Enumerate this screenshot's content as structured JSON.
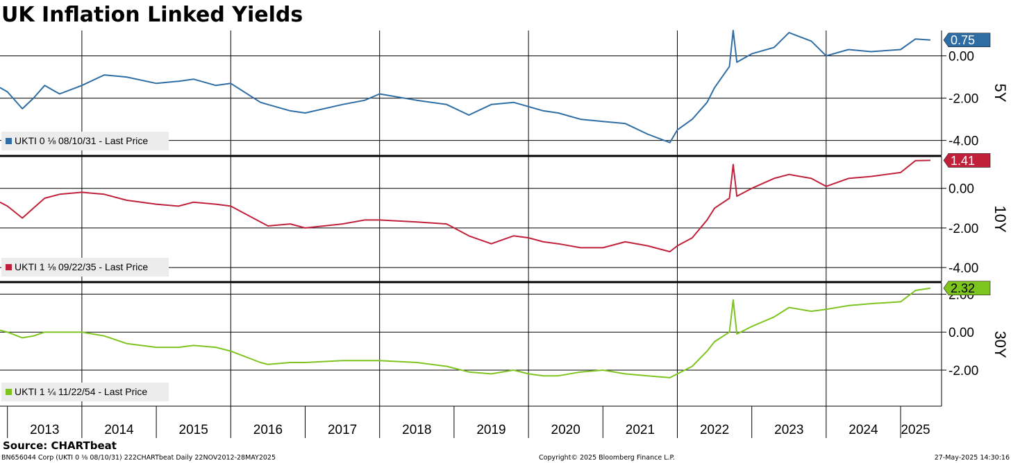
{
  "title": "UK Inflation Linked Yields",
  "source": "Source: CHARTbeat",
  "footer": {
    "left": "BN656044 Corp (UKTI 0 ⅛ 08/10/31) 222CHARTbeat  Daily 22NOV2012-28MAY2025",
    "center": "Copyright© 2025 Bloomberg Finance L.P.",
    "right": "27-May-2025 14:30:16"
  },
  "chart_data": [
    {
      "type": "line",
      "panel_label": "5Y",
      "legend": "UKTI 0 ⅛ 08/10/31 - Last Price",
      "last_value_label": "0.75",
      "color": "#2e6da4",
      "label_text_color": "#ffffff",
      "ylim": [
        -4.7,
        1.2
      ],
      "yticks": [
        0,
        -2,
        -4
      ],
      "ytick_labels": [
        "0.00",
        "-2.00",
        "-4.00"
      ],
      "x": [
        2012.9,
        2013.0,
        2013.2,
        2013.35,
        2013.5,
        2013.7,
        2014.0,
        2014.3,
        2014.6,
        2015.0,
        2015.3,
        2015.5,
        2015.8,
        2016.0,
        2016.4,
        2016.5,
        2016.8,
        2017.0,
        2017.5,
        2017.8,
        2018.0,
        2018.5,
        2018.9,
        2019.2,
        2019.5,
        2019.8,
        2020.0,
        2020.2,
        2020.4,
        2020.7,
        2021.0,
        2021.3,
        2021.6,
        2021.9,
        2022.0,
        2022.2,
        2022.4,
        2022.5,
        2022.7,
        2022.75,
        2022.8,
        2023.0,
        2023.3,
        2023.5,
        2023.8,
        2024.0,
        2024.3,
        2024.6,
        2025.0,
        2025.2,
        2025.4
      ],
      "y": [
        -1.5,
        -1.7,
        -2.5,
        -2.0,
        -1.4,
        -1.8,
        -1.4,
        -0.9,
        -1.0,
        -1.3,
        -1.2,
        -1.1,
        -1.4,
        -1.3,
        -2.2,
        -2.3,
        -2.6,
        -2.7,
        -2.3,
        -2.1,
        -1.8,
        -2.1,
        -2.3,
        -2.8,
        -2.3,
        -2.2,
        -2.4,
        -2.6,
        -2.7,
        -3.0,
        -3.1,
        -3.2,
        -3.7,
        -4.1,
        -3.5,
        -3.0,
        -2.2,
        -1.5,
        -0.5,
        1.2,
        -0.3,
        0.1,
        0.4,
        1.1,
        0.7,
        0.0,
        0.3,
        0.2,
        0.3,
        0.8,
        0.75
      ]
    },
    {
      "type": "line",
      "panel_label": "10Y",
      "legend": "UKTI 1 ⅛ 09/22/35 - Last Price",
      "last_value_label": "1.41",
      "color": "#c0203a",
      "label_text_color": "#ffffff",
      "ylim": [
        -4.7,
        1.6
      ],
      "yticks": [
        0,
        -2,
        -4
      ],
      "ytick_labels": [
        "0.00",
        "-2.00",
        "-4.00"
      ],
      "x": [
        2012.9,
        2013.0,
        2013.2,
        2013.35,
        2013.5,
        2013.7,
        2014.0,
        2014.3,
        2014.6,
        2015.0,
        2015.3,
        2015.5,
        2015.8,
        2016.0,
        2016.4,
        2016.5,
        2016.8,
        2017.0,
        2017.5,
        2017.8,
        2018.0,
        2018.5,
        2018.9,
        2019.2,
        2019.5,
        2019.8,
        2020.0,
        2020.2,
        2020.4,
        2020.7,
        2021.0,
        2021.3,
        2021.6,
        2021.9,
        2022.0,
        2022.2,
        2022.4,
        2022.5,
        2022.7,
        2022.75,
        2022.8,
        2023.0,
        2023.3,
        2023.5,
        2023.8,
        2024.0,
        2024.3,
        2024.6,
        2025.0,
        2025.2,
        2025.4
      ],
      "y": [
        -0.7,
        -0.9,
        -1.5,
        -1.0,
        -0.5,
        -0.3,
        -0.2,
        -0.3,
        -0.6,
        -0.8,
        -0.9,
        -0.7,
        -0.8,
        -0.9,
        -1.7,
        -1.9,
        -1.8,
        -2.0,
        -1.8,
        -1.6,
        -1.6,
        -1.7,
        -1.8,
        -2.4,
        -2.8,
        -2.4,
        -2.5,
        -2.7,
        -2.8,
        -3.0,
        -3.0,
        -2.7,
        -2.9,
        -3.2,
        -2.9,
        -2.5,
        -1.6,
        -1.0,
        -0.5,
        1.2,
        -0.4,
        0.0,
        0.5,
        0.7,
        0.5,
        0.1,
        0.5,
        0.6,
        0.8,
        1.4,
        1.41
      ]
    },
    {
      "type": "line",
      "panel_label": "30Y",
      "legend": "UKTI 1 ¼ 11/22/54 - Last Price",
      "last_value_label": "2.32",
      "color": "#7dc41f",
      "label_text_color": "#000000",
      "ylim": [
        -3.9,
        2.6
      ],
      "yticks": [
        2,
        0,
        -2
      ],
      "ytick_labels": [
        "2.00",
        "0.00",
        "-2.00"
      ],
      "x": [
        2012.9,
        2013.0,
        2013.2,
        2013.35,
        2013.5,
        2013.7,
        2014.0,
        2014.3,
        2014.6,
        2015.0,
        2015.3,
        2015.5,
        2015.8,
        2016.0,
        2016.4,
        2016.5,
        2016.8,
        2017.0,
        2017.5,
        2017.8,
        2018.0,
        2018.5,
        2018.9,
        2019.2,
        2019.5,
        2019.8,
        2020.0,
        2020.2,
        2020.4,
        2020.7,
        2021.0,
        2021.3,
        2021.6,
        2021.9,
        2022.0,
        2022.2,
        2022.4,
        2022.5,
        2022.7,
        2022.75,
        2022.8,
        2023.0,
        2023.3,
        2023.5,
        2023.8,
        2024.0,
        2024.3,
        2024.6,
        2025.0,
        2025.2,
        2025.4
      ],
      "y": [
        0.1,
        0.0,
        -0.3,
        -0.2,
        0.0,
        0.0,
        0.0,
        -0.2,
        -0.6,
        -0.8,
        -0.8,
        -0.7,
        -0.8,
        -1.0,
        -1.6,
        -1.7,
        -1.6,
        -1.6,
        -1.5,
        -1.5,
        -1.5,
        -1.6,
        -1.8,
        -2.1,
        -2.2,
        -2.0,
        -2.2,
        -2.3,
        -2.3,
        -2.1,
        -2.0,
        -2.2,
        -2.3,
        -2.4,
        -2.2,
        -1.8,
        -1.0,
        -0.5,
        0.0,
        1.7,
        -0.1,
        0.3,
        0.8,
        1.3,
        1.1,
        1.2,
        1.4,
        1.5,
        1.6,
        2.2,
        2.32
      ]
    }
  ],
  "x_axis": {
    "type": "time",
    "xlim": [
      2012.9,
      2025.55
    ],
    "year_labels": [
      "2013",
      "2014",
      "2015",
      "2016",
      "2017",
      "2018",
      "2019",
      "2020",
      "2021",
      "2022",
      "2023",
      "2024",
      "2025"
    ],
    "year_centers": [
      2013.5,
      2014.5,
      2015.5,
      2016.5,
      2017.5,
      2018.5,
      2019.5,
      2020.5,
      2021.5,
      2022.5,
      2023.5,
      2024.5,
      2025.2
    ],
    "grid_years": [
      2014,
      2016,
      2018,
      2020,
      2022,
      2024
    ],
    "boundary_years": [
      2013,
      2014,
      2015,
      2016,
      2017,
      2018,
      2019,
      2020,
      2021,
      2022,
      2023,
      2024,
      2025
    ]
  }
}
